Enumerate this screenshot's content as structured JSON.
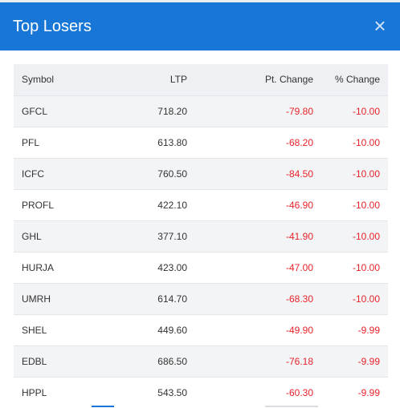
{
  "modal": {
    "title": "Top Losers",
    "close_label": "×"
  },
  "table": {
    "headers": [
      "Symbol",
      "LTP",
      "Pt. Change",
      "% Change"
    ],
    "rows": [
      {
        "symbol": "GFCL",
        "ltp": "718.20",
        "pt_change": "-79.80",
        "pct_change": "-10.00"
      },
      {
        "symbol": "PFL",
        "ltp": "613.80",
        "pt_change": "-68.20",
        "pct_change": "-10.00"
      },
      {
        "symbol": "ICFC",
        "ltp": "760.50",
        "pt_change": "-84.50",
        "pct_change": "-10.00"
      },
      {
        "symbol": "PROFL",
        "ltp": "422.10",
        "pt_change": "-46.90",
        "pct_change": "-10.00"
      },
      {
        "symbol": "GHL",
        "ltp": "377.10",
        "pt_change": "-41.90",
        "pct_change": "-10.00"
      },
      {
        "symbol": "HURJA",
        "ltp": "423.00",
        "pt_change": "-47.00",
        "pct_change": "-10.00"
      },
      {
        "symbol": "UMRH",
        "ltp": "614.70",
        "pt_change": "-68.30",
        "pct_change": "-10.00"
      },
      {
        "symbol": "SHEL",
        "ltp": "449.60",
        "pt_change": "-49.90",
        "pct_change": "-9.99"
      },
      {
        "symbol": "EDBL",
        "ltp": "686.50",
        "pt_change": "-76.18",
        "pct_change": "-9.99"
      },
      {
        "symbol": "HPPL",
        "ltp": "543.50",
        "pt_change": "-60.30",
        "pct_change": "-9.99"
      }
    ]
  },
  "colors": {
    "header_bg": "#1877d6",
    "negative": "#e8232a",
    "row_alt": "#f3f4f6"
  },
  "icons": {
    "close": "close-icon"
  }
}
